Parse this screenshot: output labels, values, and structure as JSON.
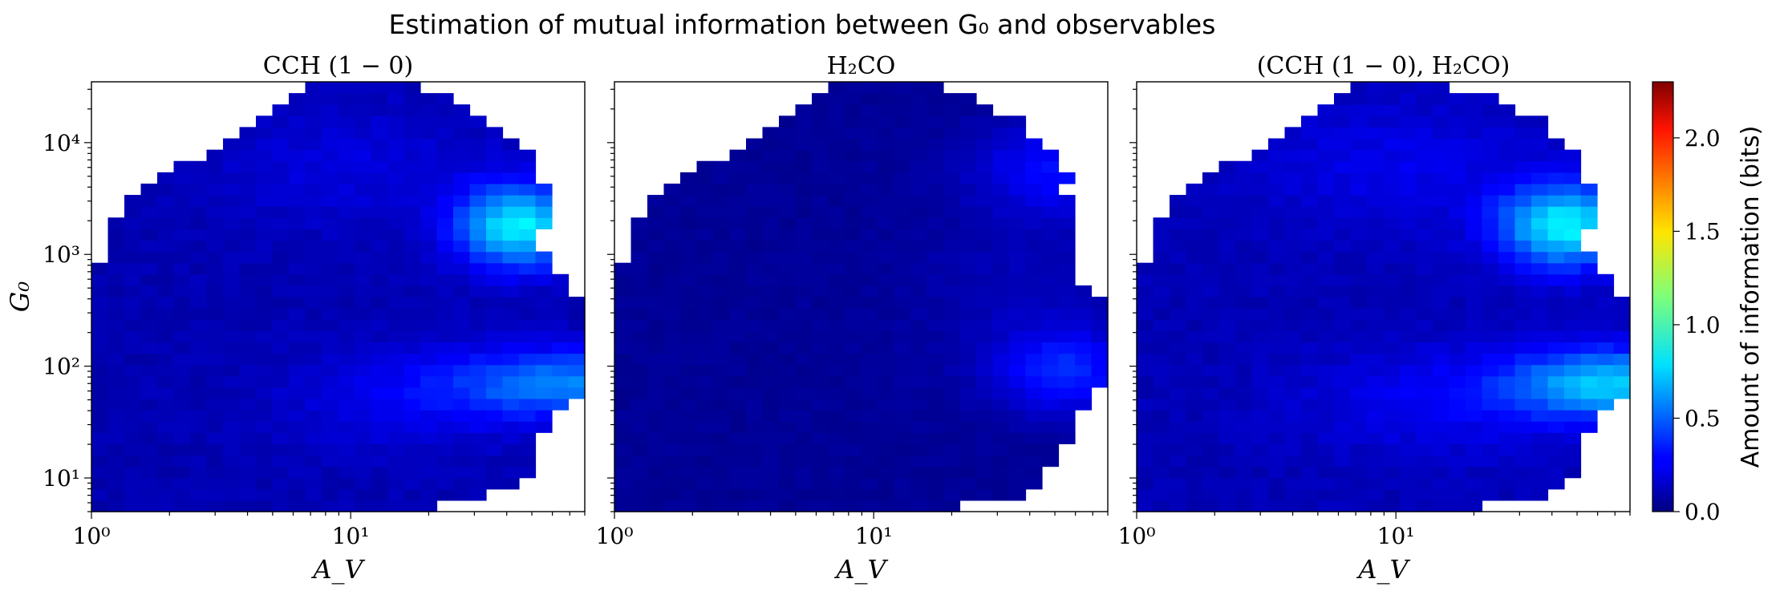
{
  "figure": {
    "title": "Estimation of mutual information between G₀ and observables"
  },
  "chart_data": [
    {
      "type": "heatmap",
      "title": "CCH (1 − 0)",
      "xlabel": "A_V",
      "ylabel": "G₀",
      "xscale": "log",
      "yscale": "log",
      "xlim": [
        1,
        80
      ],
      "ylim": [
        5,
        35000
      ],
      "xticks": [
        "10⁰",
        "10¹"
      ],
      "yticks": [
        "10¹",
        "10²",
        "10³",
        "10⁴"
      ],
      "hotspots": [
        {
          "av": 45,
          "g0": 1800,
          "bits": 0.8
        },
        {
          "av": 70,
          "g0": 70,
          "bits": 0.55
        }
      ]
    },
    {
      "type": "heatmap",
      "title": "H₂CO",
      "xlabel": "A_V",
      "ylabel": "",
      "xscale": "log",
      "yscale": "log",
      "xlim": [
        1,
        80
      ],
      "ylim": [
        5,
        35000
      ],
      "xticks": [
        "10⁰",
        "10¹"
      ],
      "yticks": [],
      "hotspots": [
        {
          "av": 55,
          "g0": 90,
          "bits": 0.35
        },
        {
          "av": 55,
          "g0": 6000,
          "bits": 0.3
        }
      ]
    },
    {
      "type": "heatmap",
      "title": "(CCH (1 − 0), H₂CO)",
      "xlabel": "A_V",
      "ylabel": "",
      "xscale": "log",
      "yscale": "log",
      "xlim": [
        1,
        80
      ],
      "ylim": [
        5,
        35000
      ],
      "xticks": [
        "10⁰",
        "10¹"
      ],
      "yticks": [],
      "hotspots": [
        {
          "av": 45,
          "g0": 1800,
          "bits": 0.8
        },
        {
          "av": 70,
          "g0": 70,
          "bits": 0.7
        }
      ]
    }
  ],
  "colorbar": {
    "label": "Amount of information (bits)",
    "colormap": "jet",
    "vmin": 0.0,
    "vmax": 2.3,
    "ticks": [
      0.0,
      0.5,
      1.0,
      1.5,
      2.0
    ],
    "tick_labels": [
      "0.0",
      "0.5",
      "1.0",
      "1.5",
      "2.0"
    ]
  }
}
